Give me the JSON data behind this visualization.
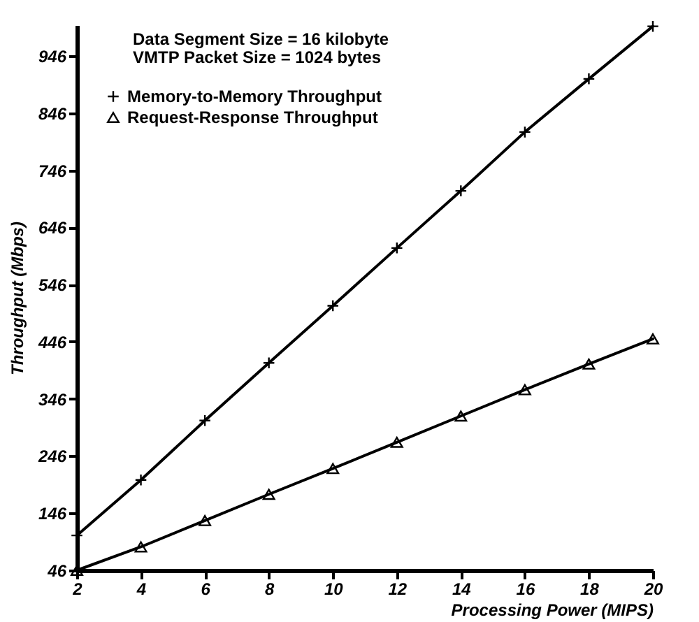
{
  "chart_data": {
    "type": "line",
    "xlabel": "Processing Power (MIPS)",
    "ylabel": "Throughput (Mbps)",
    "annotations": [
      "Data Segment Size = 16 kilobyte",
      "VMTP Packet Size  = 1024 bytes"
    ],
    "x": [
      2,
      4,
      6,
      8,
      10,
      12,
      14,
      16,
      18,
      20
    ],
    "series": [
      {
        "name": "Memory-to-Memory Throughput",
        "color": "#000000",
        "marker": "cross",
        "values": [
          107,
          204,
          308,
          409,
          509,
          610,
          710,
          813,
          906,
          998
        ]
      },
      {
        "name": "Request-Response Throughput",
        "color": "#000000",
        "marker": "triangle",
        "values": [
          46,
          87,
          133,
          179,
          224,
          270,
          316,
          362,
          407,
          451
        ]
      }
    ],
    "xlim": [
      2,
      20
    ],
    "xticks": [
      2,
      4,
      6,
      8,
      10,
      12,
      14,
      16,
      18,
      20
    ],
    "ylim": [
      46,
      1000
    ],
    "yticks": [
      46,
      146,
      246,
      346,
      446,
      546,
      646,
      746,
      846,
      946
    ],
    "grid": false,
    "legend": "top left",
    "line_style": "solid"
  }
}
